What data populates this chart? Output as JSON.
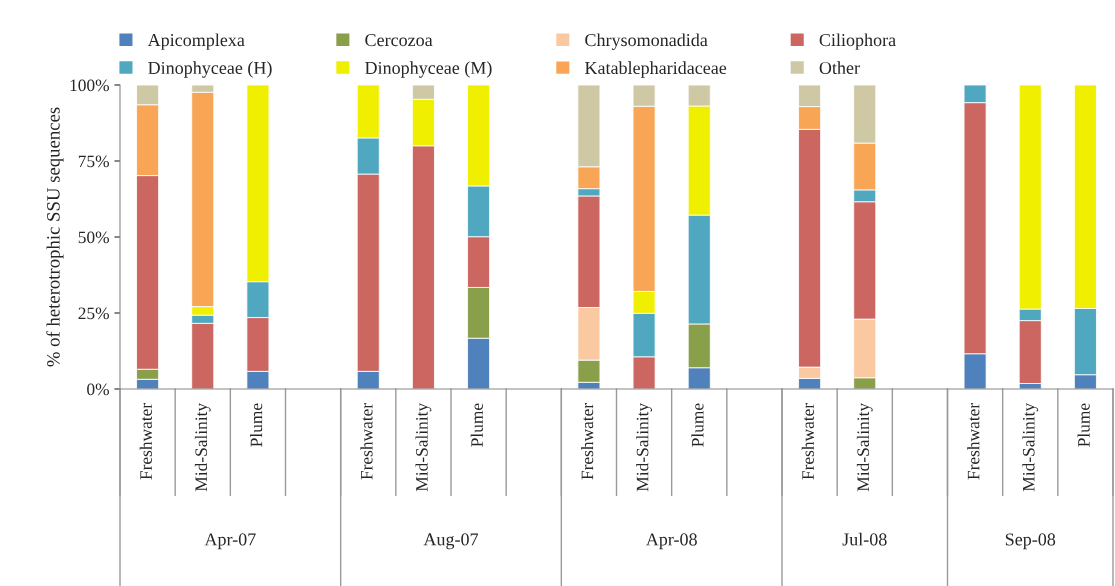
{
  "chart_data": {
    "type": "bar",
    "stacked": true,
    "ylabel": "% of heterotrophic SSU sequences",
    "categories": [
      "Freshwater",
      "Mid-Salinity",
      "Plume",
      null,
      "Freshwater",
      "Mid-Salinity",
      "Plume",
      null,
      "Freshwater",
      "Mid-Salinity",
      "Plume",
      null,
      "Freshwater",
      "Mid-Salinity",
      null,
      "Freshwater",
      "Mid-Salinity",
      "Plume"
    ],
    "annotations": [
      "Apr-07",
      "Aug-07",
      "Apr-08",
      "Jul-08",
      "Sep-08"
    ],
    "ylim": [
      0,
      100
    ],
    "yticks": [
      {
        "value": 0,
        "label": "0%"
      },
      {
        "value": 25,
        "label": "25%"
      },
      {
        "value": 50,
        "label": "50%"
      },
      {
        "value": 75,
        "label": "75%"
      },
      {
        "value": 100,
        "label": "100%"
      }
    ],
    "grid": false,
    "legend": "top",
    "series": [
      {
        "name": "Apicomplexa",
        "color": "#4f81bd",
        "values": [
          3.2,
          0,
          5.8,
          null,
          5.8,
          0,
          16.7,
          null,
          2.2,
          0,
          7.0,
          null,
          3.5,
          0,
          null,
          11.6,
          1.8,
          4.7
        ]
      },
      {
        "name": "Cercozoa",
        "color": "#8a9f4a",
        "values": [
          3.3,
          0,
          0,
          null,
          0,
          0,
          16.7,
          null,
          7.3,
          0,
          14.4,
          null,
          0,
          3.7,
          null,
          0,
          0,
          0
        ]
      },
      {
        "name": "Chrysomonadida",
        "color": "#fbc9a1",
        "values": [
          0,
          0,
          0,
          null,
          0,
          0,
          0,
          null,
          17.3,
          0,
          0,
          null,
          3.7,
          19.3,
          null,
          0,
          0,
          0
        ]
      },
      {
        "name": "Ciliophora",
        "color": "#cb6660",
        "values": [
          63.7,
          21.6,
          17.7,
          null,
          64.9,
          80.0,
          16.7,
          null,
          36.7,
          10.6,
          0,
          null,
          78.2,
          38.6,
          null,
          82.6,
          20.7,
          0
        ]
      },
      {
        "name": "Dinophyceae (H)",
        "color": "#4fa8c0",
        "values": [
          0,
          2.7,
          11.8,
          null,
          11.9,
          0,
          16.7,
          null,
          2.4,
          14.3,
          35.8,
          null,
          0,
          3.9,
          null,
          5.8,
          3.8,
          21.8
        ]
      },
      {
        "name": "Dinophyceae (M)",
        "color": "#f0ef00",
        "values": [
          0,
          2.8,
          64.7,
          null,
          17.4,
          15.3,
          33.2,
          null,
          0,
          7.2,
          35.9,
          null,
          0,
          0,
          null,
          0,
          73.7,
          73.5
        ]
      },
      {
        "name": "Katablepharidaceae",
        "color": "#f8a656",
        "values": [
          23.3,
          70.5,
          0,
          null,
          0,
          0,
          0,
          null,
          7.2,
          60.9,
          0,
          null,
          7.5,
          15.4,
          null,
          0,
          0,
          0
        ]
      },
      {
        "name": "Other",
        "color": "#cfc8a5",
        "values": [
          6.5,
          2.4,
          0,
          null,
          0,
          4.7,
          0,
          null,
          26.9,
          7.0,
          6.9,
          null,
          7.1,
          19.1,
          null,
          0,
          0,
          0
        ]
      }
    ]
  }
}
